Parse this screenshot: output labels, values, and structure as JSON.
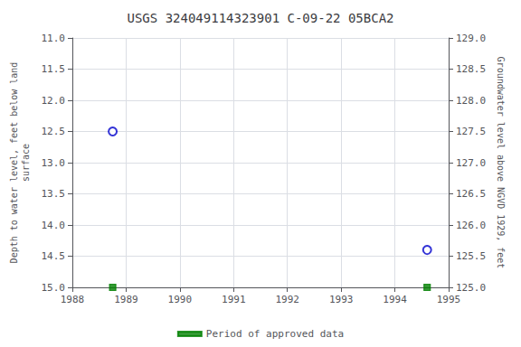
{
  "chart_data": {
    "type": "scatter",
    "title": "USGS 324049114323901 C-09-22 05BCA2",
    "ylabel": "Depth to water level, feet below land\nsurface",
    "y2label": "Groundwater level above NGVD 1929, feet",
    "series": [
      {
        "color": "#0000cc",
        "marker": "emptyCircle",
        "x": [
          1988.75,
          1994.6
        ],
        "values": [
          12.5,
          14.4
        ]
      },
      {
        "name": "Period of approved data",
        "color": "#008000",
        "marker": "square",
        "x": [
          1988.75,
          1994.6
        ],
        "values": [
          15.0,
          15.0
        ]
      }
    ],
    "xlim": [
      1988,
      1995
    ],
    "xticks": [
      1988,
      1989,
      1990,
      1991,
      1992,
      1993,
      1994,
      1995
    ],
    "ylim": [
      15.0,
      11.0
    ],
    "yticks": [
      {
        "value": 11.0,
        "label": "11.0"
      },
      {
        "value": 11.5,
        "label": "11.5"
      },
      {
        "value": 12.0,
        "label": "12.0"
      },
      {
        "value": 12.5,
        "label": "12.5"
      },
      {
        "value": 13.0,
        "label": "13.0"
      },
      {
        "value": 13.5,
        "label": "13.5"
      },
      {
        "value": 14.0,
        "label": "14.0"
      },
      {
        "value": 14.5,
        "label": "14.5"
      },
      {
        "value": 15.0,
        "label": "15.0"
      }
    ],
    "y2lim": [
      125.0,
      129.0
    ],
    "y2ticks": [
      {
        "value": 129.0,
        "label": "129.0"
      },
      {
        "value": 128.5,
        "label": "128.5"
      },
      {
        "value": 128.0,
        "label": "128.0"
      },
      {
        "value": 127.5,
        "label": "127.5"
      },
      {
        "value": 127.0,
        "label": "127.0"
      },
      {
        "value": 126.5,
        "label": "126.5"
      },
      {
        "value": 126.0,
        "label": "126.0"
      },
      {
        "value": 125.5,
        "label": "125.5"
      },
      {
        "value": 125.0,
        "label": "125.0"
      }
    ],
    "grid": true,
    "legend": "bottom"
  }
}
